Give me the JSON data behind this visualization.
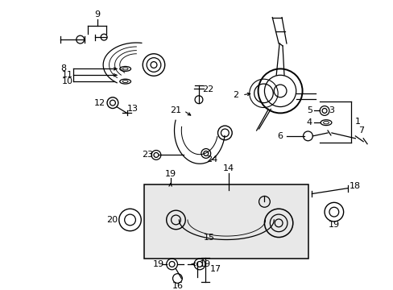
{
  "bg": "#ffffff",
  "fw": 4.89,
  "fh": 3.6,
  "dpi": 100
}
